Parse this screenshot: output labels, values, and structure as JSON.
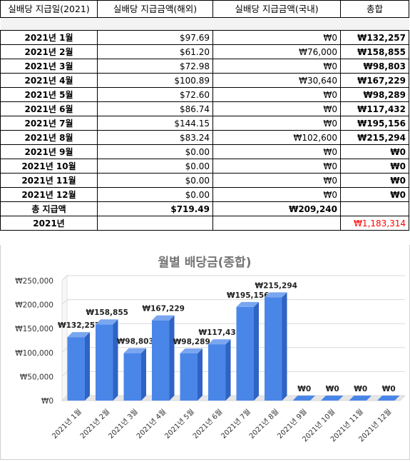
{
  "table": {
    "headers": [
      "실배당 지급일(2021)",
      "실배당 지급금액(해외)",
      "실배당 지급금액(국내)",
      "총합"
    ],
    "rows": [
      {
        "date": "2021년 1월",
        "foreign": "$97.69",
        "domestic": "₩0",
        "total": "₩132,257"
      },
      {
        "date": "2021년 2월",
        "foreign": "$61.20",
        "domestic": "₩76,000",
        "total": "₩158,855"
      },
      {
        "date": "2021년 3월",
        "foreign": "$72.98",
        "domestic": "₩0",
        "total": "₩98,803"
      },
      {
        "date": "2021년 4월",
        "foreign": "$100.89",
        "domestic": "₩30,640",
        "total": "₩167,229"
      },
      {
        "date": "2021년 5월",
        "foreign": "$72.60",
        "domestic": "₩0",
        "total": "₩98,289"
      },
      {
        "date": "2021년 6월",
        "foreign": "$86.74",
        "domestic": "₩0",
        "total": "₩117,432"
      },
      {
        "date": "2021년 7월",
        "foreign": "$144.15",
        "domestic": "₩0",
        "total": "₩195,156"
      },
      {
        "date": "2021년 8월",
        "foreign": "$83.24",
        "domestic": "₩102,600",
        "total": "₩215,294"
      },
      {
        "date": "2021년 9월",
        "foreign": "$0.00",
        "domestic": "₩0",
        "total": "₩0"
      },
      {
        "date": "2021년 10월",
        "foreign": "$0.00",
        "domestic": "₩0",
        "total": "₩0"
      },
      {
        "date": "2021년 11월",
        "foreign": "$0.00",
        "domestic": "₩0",
        "total": "₩0"
      },
      {
        "date": "2021년 12월",
        "foreign": "$0.00",
        "domestic": "₩0",
        "total": "₩0"
      }
    ],
    "sum_row": {
      "label": "총 지급액",
      "foreign": "$719.49",
      "domestic": "₩209,240",
      "total": ""
    },
    "year_row": {
      "label": "2021년",
      "foreign": "",
      "domestic": "",
      "total": "₩1,183,314"
    },
    "colors": {
      "year_total": "#ff0000"
    }
  },
  "chart_data": {
    "type": "bar",
    "title": "월별 배당금(종합)",
    "categories": [
      "2021년 1월",
      "2021년 2월",
      "2021년 3월",
      "2021년 4월",
      "2021년 5월",
      "2021년 6월",
      "2021년 7월",
      "2021년 8월",
      "2021년 9월",
      "2021년 10월",
      "2021년 11월",
      "2021년 12월"
    ],
    "values": [
      132257,
      158855,
      98803,
      167229,
      98289,
      117432,
      195156,
      215294,
      0,
      0,
      0,
      0
    ],
    "data_labels": [
      "₩132,257",
      "₩158,855",
      "₩98,803",
      "₩167,229",
      "₩98,289",
      "₩117,432",
      "₩195,156",
      "₩215,294",
      "₩0",
      "₩0",
      "₩0",
      "₩0"
    ],
    "ytick_labels": [
      "₩0",
      "₩50,000",
      "₩100,000",
      "₩150,000",
      "₩200,000",
      "₩250,000"
    ],
    "ylim": [
      0,
      250000
    ],
    "grid": true,
    "legend": "none",
    "bar_color": "#4a86e8"
  }
}
